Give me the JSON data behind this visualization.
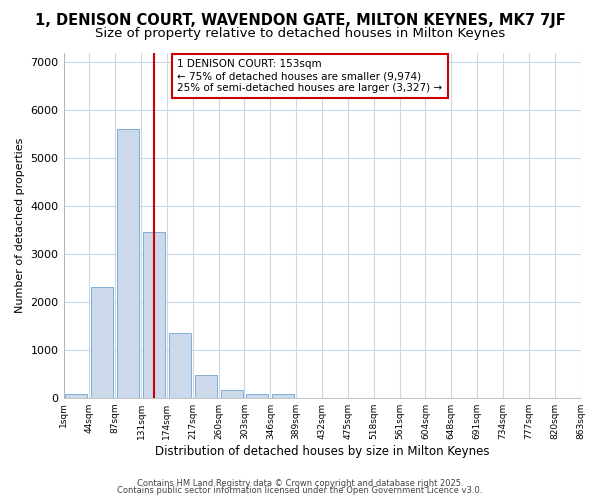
{
  "title": "1, DENISON COURT, WAVENDON GATE, MILTON KEYNES, MK7 7JF",
  "subtitle": "Size of property relative to detached houses in Milton Keynes",
  "xlabel": "Distribution of detached houses by size in Milton Keynes",
  "ylabel": "Number of detached properties",
  "bar_labels": [
    "1sqm",
    "44sqm",
    "87sqm",
    "131sqm",
    "174sqm",
    "217sqm",
    "260sqm",
    "303sqm",
    "346sqm",
    "389sqm",
    "432sqm",
    "475sqm",
    "518sqm",
    "561sqm",
    "604sqm",
    "648sqm",
    "691sqm",
    "734sqm",
    "777sqm",
    "820sqm",
    "863sqm"
  ],
  "bar_heights": [
    75,
    2300,
    5600,
    3450,
    1350,
    480,
    160,
    75,
    75,
    0,
    0,
    0,
    0,
    0,
    0,
    0,
    0,
    0,
    0,
    0
  ],
  "bar_color": "#ccd9ea",
  "bar_edgecolor": "#7fafd4",
  "vline_x": 3.0,
  "vline_color": "#cc0000",
  "annotation_text": "1 DENISON COURT: 153sqm\n← 75% of detached houses are smaller (9,974)\n25% of semi-detached houses are larger (3,327) →",
  "annotation_box_color": "#cc0000",
  "ylim": [
    0,
    7200
  ],
  "yticks": [
    0,
    1000,
    2000,
    3000,
    4000,
    5000,
    6000,
    7000
  ],
  "bg_color": "#ffffff",
  "plot_bg_color": "#ffffff",
  "grid_color": "#c8d8e8",
  "footer1": "Contains HM Land Registry data © Crown copyright and database right 2025.",
  "footer2": "Contains public sector information licensed under the Open Government Licence v3.0.",
  "title_fontsize": 10.5,
  "subtitle_fontsize": 9.5
}
